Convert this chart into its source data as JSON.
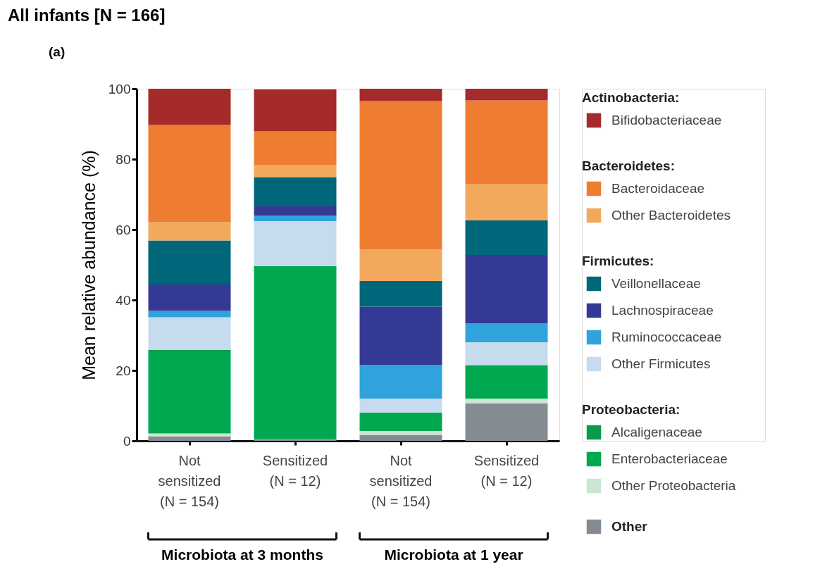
{
  "chart_data": {
    "type": "bar",
    "stacked": true,
    "title": "All infants [N = 166]",
    "ylabel": "Mean relative abundance  (%)",
    "categories": [
      "Not\nsensitized\n(N = 154)",
      "Sensitized\n\n(N = 12)",
      "Not\nsensitized\n(N = 154)",
      "Sensitized\n\n(N = 12)"
    ],
    "ylim": [
      0,
      100
    ],
    "yticks": [
      0,
      20,
      40,
      60,
      80,
      100
    ],
    "grid": false,
    "legend": "right",
    "annotations": [
      "(a)",
      "Microbiota at 3 months",
      "Microbiota at 1 year",
      "Actinobacteria:",
      "Bacteroidetes:",
      "Firmicutes:",
      "Proteobacteria:"
    ],
    "series": [
      {
        "name": "Other",
        "color": "#858b92",
        "values": [
          1.3,
          0.5,
          1.7,
          10.6
        ]
      },
      {
        "name": "Other Proteobacteria",
        "color": "#c8e6d2",
        "values": [
          0.8,
          null,
          1.1,
          1.4
        ]
      },
      {
        "name": "Enterobacteriaceae",
        "color": "#00a84f",
        "values": [
          23.3,
          49.1,
          5.2,
          9.5
        ]
      },
      {
        "name": "Alcaligenaceae",
        "color": "#0a9b4a",
        "values": [
          0.4,
          0,
          0,
          0
        ]
      },
      {
        "name": "Other Firmicutes",
        "color": "#c6dbee",
        "values": [
          9.3,
          12.8,
          4.0,
          6.5
        ]
      },
      {
        "name": "Ruminococcaceae",
        "color": "#30a3dc",
        "values": [
          1.8,
          1.5,
          9.5,
          5.4
        ]
      },
      {
        "name": "Lachnospiraceae",
        "color": "#353996",
        "values": [
          7.5,
          2.7,
          16.6,
          19.4
        ]
      },
      {
        "name": "Veillonellaceae",
        "color": "#006679",
        "values": [
          12.5,
          8.3,
          7.3,
          9.8
        ]
      },
      {
        "name": "Other Bacteroidetes",
        "color": "#f2a95e",
        "values": [
          5.2,
          3.5,
          9.0,
          10.3
        ]
      },
      {
        "name": "Bacteroidaceae",
        "color": "#ee7d31",
        "values": [
          27.6,
          9.5,
          42.1,
          23.8
        ]
      },
      {
        "name": "Bifidobacteriaceae",
        "color": "#a52a2a",
        "values": [
          10.3,
          11.9,
          3.5,
          3.3
        ]
      }
    ]
  }
}
